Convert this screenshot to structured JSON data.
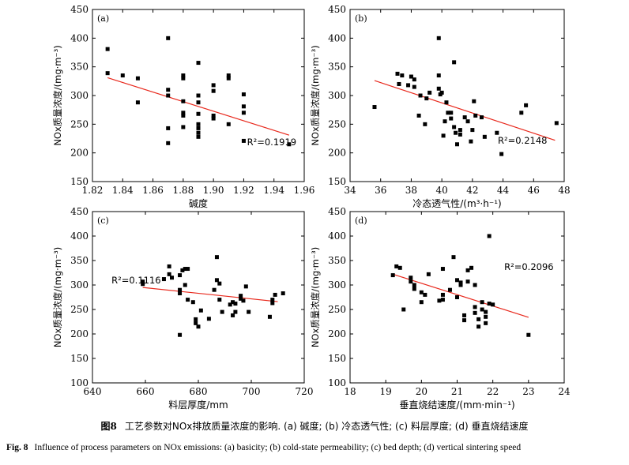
{
  "chart_data": [
    {
      "type": "scatter",
      "panel_label": "(a)",
      "xlabel": "碱度",
      "ylabel": "NOx质量浓度/(mg·m⁻³)",
      "xlim": [
        1.82,
        1.96
      ],
      "ylim": [
        150,
        450
      ],
      "xticks": [
        "1.82",
        "1.84",
        "1.86",
        "1.88",
        "1.90",
        "1.92",
        "1.94",
        "1.96"
      ],
      "yticks": [
        "150",
        "200",
        "250",
        "300",
        "350",
        "400",
        "450"
      ],
      "r2_label": "R²=0.1919",
      "fit_line": [
        [
          1.83,
          331
        ],
        [
          1.95,
          231
        ]
      ],
      "points": [
        [
          1.83,
          381
        ],
        [
          1.83,
          339
        ],
        [
          1.84,
          335
        ],
        [
          1.85,
          330
        ],
        [
          1.85,
          288
        ],
        [
          1.87,
          400
        ],
        [
          1.87,
          310
        ],
        [
          1.87,
          300
        ],
        [
          1.87,
          243
        ],
        [
          1.87,
          217
        ],
        [
          1.88,
          335
        ],
        [
          1.88,
          330
        ],
        [
          1.88,
          290
        ],
        [
          1.88,
          270
        ],
        [
          1.88,
          265
        ],
        [
          1.88,
          245
        ],
        [
          1.89,
          357
        ],
        [
          1.89,
          300
        ],
        [
          1.89,
          288
        ],
        [
          1.89,
          268
        ],
        [
          1.89,
          250
        ],
        [
          1.89,
          243
        ],
        [
          1.89,
          235
        ],
        [
          1.89,
          228
        ],
        [
          1.9,
          318
        ],
        [
          1.9,
          308
        ],
        [
          1.9,
          265
        ],
        [
          1.9,
          260
        ],
        [
          1.91,
          335
        ],
        [
          1.91,
          330
        ],
        [
          1.91,
          250
        ],
        [
          1.92,
          302
        ],
        [
          1.92,
          281
        ],
        [
          1.92,
          270
        ],
        [
          1.92,
          221
        ],
        [
          1.95,
          215
        ]
      ]
    },
    {
      "type": "scatter",
      "panel_label": "(b)",
      "xlabel": "冷态透气性/(m³·h⁻¹)",
      "ylabel": "NOx质量浓度/(mg·m⁻³)",
      "xlim": [
        34,
        48
      ],
      "ylim": [
        150,
        450
      ],
      "xticks": [
        "34",
        "36",
        "38",
        "40",
        "42",
        "44",
        "46",
        "48"
      ],
      "yticks": [
        "150",
        "200",
        "250",
        "300",
        "350",
        "400",
        "450"
      ],
      "r2_label": "R²=0.2148",
      "fit_line": [
        [
          35.6,
          326
        ],
        [
          47.4,
          222
        ]
      ],
      "points": [
        [
          35.6,
          280
        ],
        [
          37.1,
          338
        ],
        [
          37.2,
          320
        ],
        [
          37.4,
          335
        ],
        [
          37.8,
          318
        ],
        [
          38.0,
          333
        ],
        [
          38.2,
          328
        ],
        [
          38.2,
          315
        ],
        [
          38.5,
          265
        ],
        [
          38.6,
          300
        ],
        [
          38.9,
          250
        ],
        [
          39.0,
          295
        ],
        [
          39.2,
          305
        ],
        [
          39.8,
          400
        ],
        [
          39.8,
          335
        ],
        [
          39.8,
          312
        ],
        [
          39.9,
          302
        ],
        [
          40.0,
          305
        ],
        [
          40.1,
          230
        ],
        [
          40.2,
          255
        ],
        [
          40.3,
          288
        ],
        [
          40.4,
          270
        ],
        [
          40.6,
          270
        ],
        [
          40.6,
          260
        ],
        [
          40.8,
          358
        ],
        [
          40.8,
          245
        ],
        [
          40.9,
          235
        ],
        [
          41.0,
          215
        ],
        [
          41.2,
          232
        ],
        [
          41.2,
          240
        ],
        [
          41.5,
          262
        ],
        [
          41.7,
          255
        ],
        [
          41.9,
          220
        ],
        [
          42.0,
          240
        ],
        [
          42.1,
          290
        ],
        [
          42.2,
          265
        ],
        [
          42.6,
          262
        ],
        [
          42.8,
          228
        ],
        [
          43.6,
          235
        ],
        [
          43.9,
          198
        ],
        [
          45.2,
          270
        ],
        [
          45.5,
          283
        ],
        [
          47.5,
          252
        ]
      ]
    },
    {
      "type": "scatter",
      "panel_label": "(c)",
      "xlabel": "料层厚度/mm",
      "ylabel": "NOx质量浓度/(mg·m⁻³)",
      "xlim": [
        640,
        720
      ],
      "ylim": [
        100,
        450
      ],
      "xticks": [
        "640",
        "660",
        "680",
        "700",
        "720"
      ],
      "yticks": [
        "100",
        "150",
        "200",
        "250",
        "300",
        "350",
        "400",
        "450"
      ],
      "r2_label": "R²=0.1116",
      "fit_line": [
        [
          659,
          295
        ],
        [
          710,
          266
        ]
      ],
      "points": [
        [
          659,
          307
        ],
        [
          659,
          302
        ],
        [
          667,
          312
        ],
        [
          669,
          322
        ],
        [
          669,
          338
        ],
        [
          670,
          315
        ],
        [
          673,
          320
        ],
        [
          673,
          290
        ],
        [
          673,
          283
        ],
        [
          673,
          198
        ],
        [
          674,
          330
        ],
        [
          675,
          333
        ],
        [
          675,
          300
        ],
        [
          676,
          270
        ],
        [
          676,
          333
        ],
        [
          678,
          265
        ],
        [
          679,
          230
        ],
        [
          679,
          222
        ],
        [
          680,
          215
        ],
        [
          681,
          248
        ],
        [
          684,
          231
        ],
        [
          686,
          290
        ],
        [
          687,
          357
        ],
        [
          687,
          310
        ],
        [
          688,
          303
        ],
        [
          688,
          270
        ],
        [
          689,
          245
        ],
        [
          692,
          260
        ],
        [
          693,
          238
        ],
        [
          693,
          265
        ],
        [
          694,
          262
        ],
        [
          694,
          245
        ],
        [
          696,
          272
        ],
        [
          696,
          278
        ],
        [
          697,
          268
        ],
        [
          698,
          297
        ],
        [
          699,
          245
        ],
        [
          707,
          235
        ],
        [
          708,
          263
        ],
        [
          708,
          270
        ],
        [
          709,
          280
        ],
        [
          712,
          283
        ]
      ]
    },
    {
      "type": "scatter",
      "panel_label": "(d)",
      "xlabel": "垂直烧结速度/(mm·min⁻¹)",
      "ylabel": "NOx质量浓度/(mg·m⁻³)",
      "xlim": [
        18,
        24
      ],
      "ylim": [
        100,
        450
      ],
      "xticks": [
        "18",
        "19",
        "20",
        "21",
        "22",
        "23",
        "24"
      ],
      "yticks": [
        "100",
        "150",
        "200",
        "250",
        "300",
        "350",
        "400",
        "450"
      ],
      "r2_label": "R²=0.2096",
      "fit_line": [
        [
          19.2,
          322
        ],
        [
          23.0,
          234
        ]
      ],
      "points": [
        [
          19.2,
          320
        ],
        [
          19.3,
          338
        ],
        [
          19.4,
          335
        ],
        [
          19.5,
          250
        ],
        [
          19.7,
          315
        ],
        [
          19.7,
          307
        ],
        [
          19.8,
          292
        ],
        [
          19.8,
          300
        ],
        [
          20.0,
          265
        ],
        [
          20.0,
          285
        ],
        [
          20.1,
          280
        ],
        [
          20.2,
          322
        ],
        [
          20.5,
          268
        ],
        [
          20.6,
          280
        ],
        [
          20.6,
          270
        ],
        [
          20.6,
          333
        ],
        [
          20.8,
          290
        ],
        [
          20.9,
          357
        ],
        [
          21.0,
          275
        ],
        [
          21.0,
          310
        ],
        [
          21.1,
          305
        ],
        [
          21.1,
          300
        ],
        [
          21.2,
          238
        ],
        [
          21.2,
          228
        ],
        [
          21.3,
          330
        ],
        [
          21.3,
          307
        ],
        [
          21.4,
          335
        ],
        [
          21.5,
          300
        ],
        [
          21.5,
          255
        ],
        [
          21.5,
          243
        ],
        [
          21.6,
          230
        ],
        [
          21.6,
          215
        ],
        [
          21.7,
          265
        ],
        [
          21.7,
          250
        ],
        [
          21.8,
          235
        ],
        [
          21.8,
          222
        ],
        [
          21.8,
          245
        ],
        [
          21.9,
          400
        ],
        [
          21.9,
          262
        ],
        [
          22.0,
          260
        ],
        [
          23.0,
          198
        ]
      ]
    }
  ],
  "caption": {
    "cn_fig": "图8",
    "cn_text": "工艺参数对NOx排放质量浓度的影响. (a) 碱度; (b) 冷态透气性; (c) 料层厚度; (d) 垂直烧结速度",
    "en_fig": "Fig. 8",
    "en_text": "Influence of process parameters on NOx emissions: (a) basicity; (b) cold-state permeability; (c) bed depth; (d) vertical sintering speed"
  }
}
